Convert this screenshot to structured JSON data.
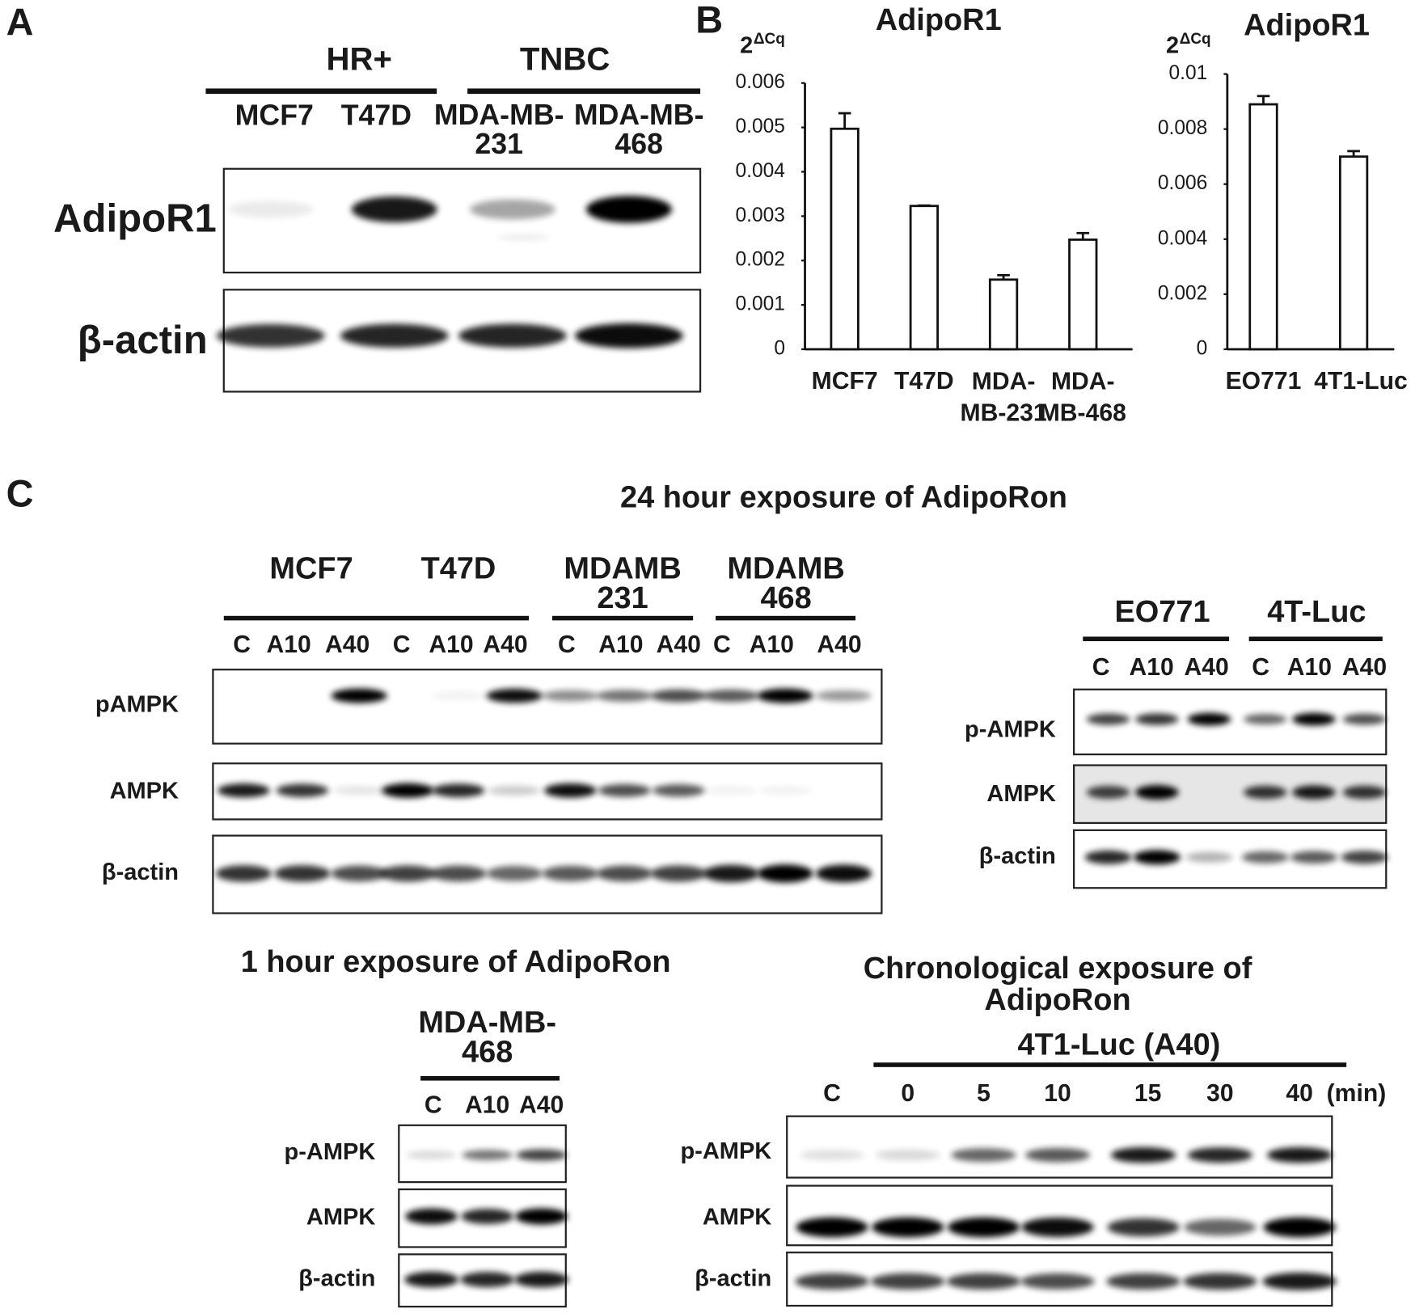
{
  "panel_a": {
    "label": "A",
    "groups": [
      "HR+",
      "TNBC"
    ],
    "lanes": [
      "MCF7",
      "T47D",
      "MDA-MB-\n231",
      "MDA-MB-\n468"
    ],
    "rows": [
      "AdipoR1",
      "β-actin"
    ]
  },
  "panel_b": {
    "label": "B"
  },
  "chart_data": [
    {
      "type": "bar",
      "title": "AdipoR1",
      "y_label": "2",
      "y_label_sup": "ΔCq",
      "categories": [
        "MCF7",
        "T47D",
        "MDA-\nMB-231",
        "MDA-\nMB-468"
      ],
      "values": [
        0.00497,
        0.00323,
        0.00157,
        0.00247
      ],
      "errors": [
        0.00035,
        1e-05,
        0.0001,
        0.00015
      ],
      "color": "#ffffff",
      "ylim": [
        0,
        0.006
      ],
      "yticks": [
        0,
        0.001,
        0.002,
        0.003,
        0.004,
        0.005,
        0.006
      ]
    },
    {
      "type": "bar",
      "title": "AdipoR1",
      "y_label": "2",
      "y_label_sup": "ΔCq",
      "categories": [
        "EO771",
        "4T1-Luc"
      ],
      "values": [
        0.0089,
        0.007
      ],
      "errors": [
        0.0003,
        0.0002
      ],
      "color": "#ffffff",
      "ylim": [
        0,
        0.01
      ],
      "yticks": [
        0,
        0.002,
        0.004,
        0.006,
        0.008,
        0.01
      ]
    }
  ],
  "panel_c": {
    "label": "C",
    "title": "24 hour exposure of AdipoRon",
    "human": {
      "groups": [
        "MCF7",
        "T47D",
        "MDAMB\n231",
        "MDAMB\n468"
      ],
      "lanes": [
        "C",
        "A10",
        "A40",
        "C",
        "A10",
        "A40",
        "C",
        "A10",
        "A40",
        "C",
        "A10",
        "A40"
      ],
      "rows": [
        "pAMPK",
        "AMPK",
        "β-actin"
      ]
    },
    "mouse": {
      "groups": [
        "EO771",
        "4T-Luc"
      ],
      "lanes": [
        "C",
        "A10",
        "A40",
        "C",
        "A10",
        "A40"
      ],
      "rows": [
        "p-AMPK",
        "AMPK",
        "β-actin"
      ]
    },
    "one_hour": {
      "title": "1 hour exposure of AdipoRon",
      "group": "MDA-MB-\n468",
      "lanes": [
        "C",
        "A10",
        "A40"
      ],
      "rows": [
        "p-AMPK",
        "AMPK",
        "β-actin"
      ]
    },
    "chrono": {
      "title": "Chronological exposure of\nAdipoRon",
      "group": "4T1-Luc (A40)",
      "lanes": [
        "C",
        "0",
        "5",
        "10",
        "15",
        "30",
        "40",
        "(min)"
      ],
      "rows": [
        "p-AMPK",
        "AMPK",
        "β-actin"
      ]
    }
  }
}
